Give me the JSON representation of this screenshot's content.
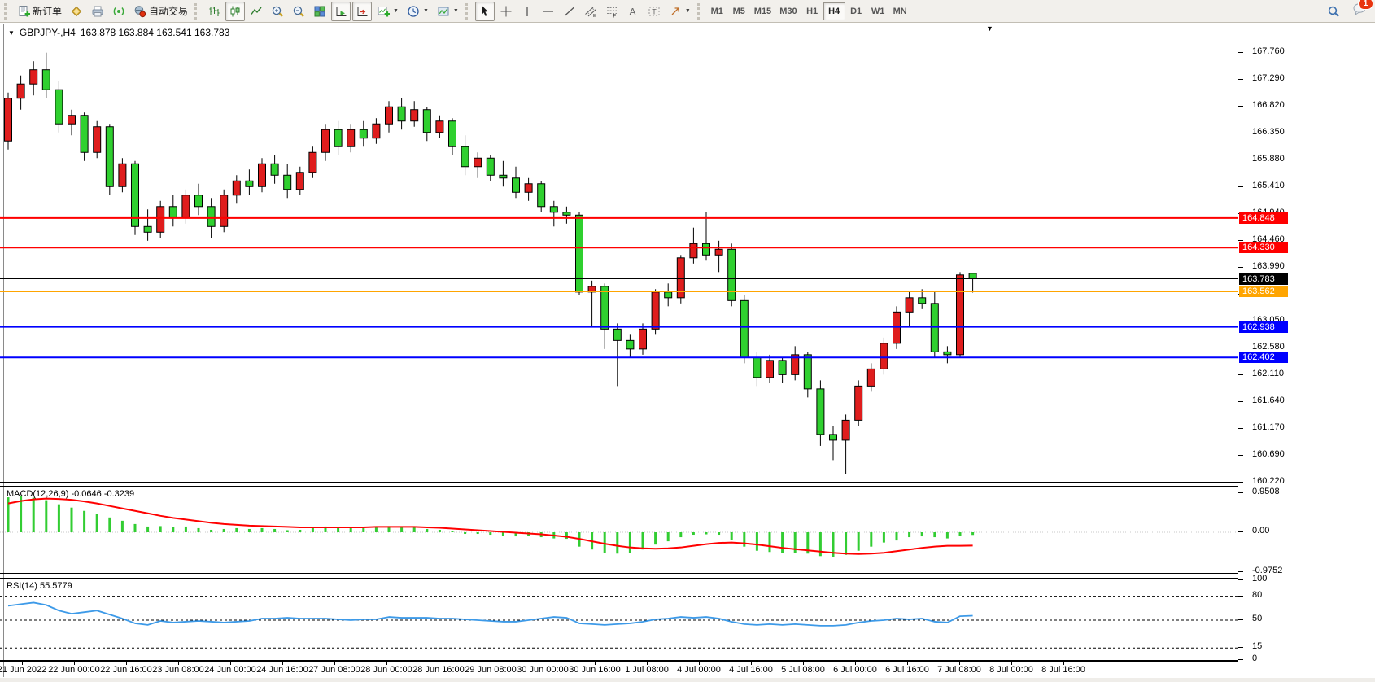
{
  "toolbar": {
    "new_order": "新订单",
    "auto_trading": "自动交易",
    "timeframes": [
      "M1",
      "M5",
      "M15",
      "M30",
      "H1",
      "H4",
      "D1",
      "W1",
      "MN"
    ],
    "active_timeframe": "H4",
    "notification_count": "1"
  },
  "chart": {
    "title": "GBPJPY-,H4",
    "ohlc": "163.878 163.884 163.541 163.783"
  },
  "colors": {
    "bull": "#df1d1d",
    "bear": "#2fd02f",
    "wick": "#000000",
    "line_red": "#ff0000",
    "line_orange": "#ffa500",
    "line_blue": "#0000ff",
    "line_black": "#000000",
    "macd_histogram": "#32cd32",
    "macd_signal": "#ff0000",
    "rsi_line": "#3d9ae8"
  },
  "chart_data": {
    "type": "candlestick",
    "symbol": "GBPJPY-",
    "period": "H4",
    "y_ticks": [
      "167.760",
      "167.290",
      "166.820",
      "166.350",
      "165.880",
      "165.410",
      "164.940",
      "164.460",
      "163.990",
      "163.520",
      "163.050",
      "162.580",
      "162.110",
      "161.640",
      "161.170",
      "160.690",
      "160.220"
    ],
    "y_range": [
      160.22,
      167.76
    ],
    "price_lines": [
      {
        "value": "164.848",
        "price": 164.848,
        "color": "#ff0000",
        "width": 2
      },
      {
        "value": "164.330",
        "price": 164.33,
        "color": "#ff0000",
        "width": 2
      },
      {
        "value": "163.783",
        "price": 163.783,
        "color": "#000000",
        "width": 1
      },
      {
        "value": "163.562",
        "price": 163.562,
        "color": "#ffa500",
        "width": 2
      },
      {
        "value": "162.938",
        "price": 162.938,
        "color": "#0000ff",
        "width": 2
      },
      {
        "value": "162.402",
        "price": 162.402,
        "color": "#0000ff",
        "width": 2
      }
    ],
    "x_labels": [
      "21 Jun 2022",
      "22 Jun 00:00",
      "22 Jun 16:00",
      "23 Jun 08:00",
      "24 Jun 00:00",
      "24 Jun 16:00",
      "27 Jun 08:00",
      "28 Jun 00:00",
      "28 Jun 16:00",
      "29 Jun 08:00",
      "30 Jun 00:00",
      "30 Jun 16:00",
      "1 Jul 08:00",
      "4 Jul 00:00",
      "4 Jul 16:00",
      "5 Jul 08:00",
      "6 Jul 00:00",
      "6 Jul 16:00",
      "7 Jul 08:00",
      "8 Jul 00:00",
      "8 Jul 16:00"
    ],
    "candles": [
      [
        166.2,
        167.05,
        166.05,
        166.95
      ],
      [
        166.95,
        167.35,
        166.75,
        167.2
      ],
      [
        167.2,
        167.6,
        167.0,
        167.45
      ],
      [
        167.45,
        167.75,
        166.95,
        167.1
      ],
      [
        167.1,
        167.25,
        166.35,
        166.5
      ],
      [
        166.5,
        166.75,
        166.3,
        166.65
      ],
      [
        166.65,
        166.7,
        165.85,
        166.0
      ],
      [
        166.0,
        166.55,
        165.9,
        166.45
      ],
      [
        166.45,
        166.5,
        165.25,
        165.4
      ],
      [
        165.4,
        165.9,
        165.3,
        165.8
      ],
      [
        165.8,
        165.85,
        164.55,
        164.7
      ],
      [
        164.7,
        165.0,
        164.45,
        164.6
      ],
      [
        164.6,
        165.15,
        164.5,
        165.05
      ],
      [
        165.05,
        165.25,
        164.7,
        164.85
      ],
      [
        164.85,
        165.35,
        164.75,
        165.25
      ],
      [
        165.25,
        165.45,
        164.9,
        165.05
      ],
      [
        165.05,
        165.2,
        164.5,
        164.7
      ],
      [
        164.7,
        165.35,
        164.6,
        165.25
      ],
      [
        165.25,
        165.6,
        165.1,
        165.5
      ],
      [
        165.5,
        165.7,
        165.25,
        165.4
      ],
      [
        165.4,
        165.9,
        165.3,
        165.8
      ],
      [
        165.8,
        165.95,
        165.45,
        165.6
      ],
      [
        165.6,
        165.8,
        165.2,
        165.35
      ],
      [
        165.35,
        165.75,
        165.25,
        165.65
      ],
      [
        165.65,
        166.1,
        165.55,
        166.0
      ],
      [
        166.0,
        166.5,
        165.85,
        166.4
      ],
      [
        166.4,
        166.55,
        165.95,
        166.1
      ],
      [
        166.1,
        166.5,
        166.0,
        166.4
      ],
      [
        166.4,
        166.55,
        166.1,
        166.25
      ],
      [
        166.25,
        166.6,
        166.15,
        166.5
      ],
      [
        166.5,
        166.9,
        166.35,
        166.8
      ],
      [
        166.8,
        166.95,
        166.4,
        166.55
      ],
      [
        166.55,
        166.9,
        166.45,
        166.75
      ],
      [
        166.75,
        166.8,
        166.2,
        166.35
      ],
      [
        166.35,
        166.65,
        166.25,
        166.55
      ],
      [
        166.55,
        166.6,
        165.95,
        166.1
      ],
      [
        166.1,
        166.3,
        165.6,
        165.75
      ],
      [
        165.75,
        166.0,
        165.55,
        165.9
      ],
      [
        165.9,
        165.95,
        165.5,
        165.6
      ],
      [
        165.6,
        165.85,
        165.4,
        165.55
      ],
      [
        165.55,
        165.75,
        165.2,
        165.3
      ],
      [
        165.3,
        165.55,
        165.15,
        165.45
      ],
      [
        165.45,
        165.5,
        164.95,
        165.05
      ],
      [
        165.05,
        165.15,
        164.7,
        164.95
      ],
      [
        164.95,
        165.05,
        164.75,
        164.9
      ],
      [
        164.9,
        164.95,
        163.5,
        163.55
      ],
      [
        163.55,
        163.75,
        162.95,
        163.65
      ],
      [
        163.65,
        163.7,
        162.55,
        162.9
      ],
      [
        162.9,
        163.0,
        161.9,
        162.7
      ],
      [
        162.7,
        162.8,
        162.4,
        162.55
      ],
      [
        162.55,
        163.0,
        162.45,
        162.9
      ],
      [
        162.9,
        163.6,
        162.8,
        163.55
      ],
      [
        163.55,
        163.7,
        163.3,
        163.45
      ],
      [
        163.45,
        164.2,
        163.35,
        164.15
      ],
      [
        164.15,
        164.68,
        164.05,
        164.4
      ],
      [
        164.4,
        164.95,
        164.1,
        164.2
      ],
      [
        164.2,
        164.45,
        163.9,
        164.3
      ],
      [
        164.3,
        164.4,
        163.3,
        163.4
      ],
      [
        163.4,
        163.5,
        162.3,
        162.4
      ],
      [
        162.4,
        162.5,
        161.9,
        162.05
      ],
      [
        162.05,
        162.45,
        161.95,
        162.35
      ],
      [
        162.35,
        162.4,
        161.95,
        162.1
      ],
      [
        162.1,
        162.6,
        162.0,
        162.45
      ],
      [
        162.45,
        162.5,
        161.7,
        161.85
      ],
      [
        161.85,
        162.0,
        160.85,
        161.05
      ],
      [
        161.05,
        161.2,
        160.6,
        160.95
      ],
      [
        160.95,
        161.4,
        160.35,
        161.3
      ],
      [
        161.3,
        162.0,
        161.2,
        161.9
      ],
      [
        161.9,
        162.3,
        161.8,
        162.2
      ],
      [
        162.2,
        162.75,
        162.1,
        162.65
      ],
      [
        162.65,
        163.3,
        162.55,
        163.2
      ],
      [
        163.2,
        163.55,
        162.95,
        163.45
      ],
      [
        163.45,
        163.6,
        163.25,
        163.35
      ],
      [
        163.35,
        163.55,
        162.4,
        162.5
      ],
      [
        162.5,
        162.6,
        162.3,
        162.45
      ],
      [
        162.45,
        163.9,
        162.4,
        163.85
      ],
      [
        163.878,
        163.884,
        163.541,
        163.783
      ]
    ],
    "macd": {
      "label": "MACD(12,26,9) -0.0646 -0.3239",
      "ticks": [
        "0.9508",
        "0.00",
        "-0.9752"
      ],
      "tick_values": [
        0.9508,
        0,
        -0.9752
      ],
      "histogram": [
        0.85,
        0.88,
        0.84,
        0.78,
        0.68,
        0.6,
        0.52,
        0.45,
        0.36,
        0.28,
        0.2,
        0.14,
        0.15,
        0.13,
        0.14,
        0.1,
        0.06,
        0.08,
        0.1,
        0.08,
        0.1,
        0.08,
        0.05,
        0.06,
        0.1,
        0.14,
        0.12,
        0.13,
        0.12,
        0.13,
        0.15,
        0.12,
        0.13,
        0.08,
        0.06,
        0.02,
        -0.04,
        -0.04,
        -0.06,
        -0.08,
        -0.1,
        -0.08,
        -0.12,
        -0.15,
        -0.16,
        -0.35,
        -0.42,
        -0.5,
        -0.52,
        -0.5,
        -0.42,
        -0.3,
        -0.22,
        -0.12,
        -0.06,
        -0.05,
        -0.06,
        -0.18,
        -0.35,
        -0.45,
        -0.48,
        -0.5,
        -0.5,
        -0.52,
        -0.58,
        -0.6,
        -0.55,
        -0.45,
        -0.35,
        -0.25,
        -0.2,
        -0.12,
        -0.1,
        -0.12,
        -0.15,
        -0.08,
        -0.0646
      ],
      "signal": [
        0.7,
        0.76,
        0.8,
        0.82,
        0.81,
        0.79,
        0.75,
        0.7,
        0.64,
        0.58,
        0.52,
        0.46,
        0.4,
        0.35,
        0.31,
        0.27,
        0.23,
        0.2,
        0.18,
        0.16,
        0.15,
        0.14,
        0.13,
        0.12,
        0.12,
        0.12,
        0.12,
        0.12,
        0.12,
        0.13,
        0.13,
        0.13,
        0.13,
        0.12,
        0.11,
        0.09,
        0.07,
        0.05,
        0.03,
        0.01,
        -0.01,
        -0.03,
        -0.05,
        -0.08,
        -0.11,
        -0.16,
        -0.22,
        -0.28,
        -0.33,
        -0.37,
        -0.39,
        -0.4,
        -0.39,
        -0.37,
        -0.33,
        -0.29,
        -0.26,
        -0.25,
        -0.27,
        -0.3,
        -0.34,
        -0.38,
        -0.41,
        -0.44,
        -0.47,
        -0.5,
        -0.52,
        -0.53,
        -0.52,
        -0.5,
        -0.46,
        -0.42,
        -0.38,
        -0.35,
        -0.33,
        -0.33,
        -0.3239
      ]
    },
    "rsi": {
      "label": "RSI(14) 55.5779",
      "ticks": [
        "100",
        "80",
        "50",
        "15",
        "0"
      ],
      "tick_values": [
        100,
        80,
        50,
        15,
        0
      ],
      "levels": [
        80,
        50,
        15
      ],
      "values": [
        68,
        70,
        72,
        69,
        62,
        58,
        60,
        62,
        57,
        52,
        46,
        44,
        49,
        47,
        48,
        49,
        48,
        47,
        48,
        49,
        52,
        52,
        53,
        52,
        52,
        52,
        51,
        50,
        51,
        51,
        54,
        53,
        53,
        53,
        52,
        52,
        51,
        50,
        49,
        48,
        48,
        50,
        52,
        54,
        53,
        46,
        45,
        44,
        45,
        46,
        48,
        51,
        52,
        54,
        53,
        54,
        52,
        48,
        45,
        44,
        45,
        44,
        45,
        44,
        43,
        43,
        44,
        47,
        49,
        50,
        52,
        51,
        52,
        48,
        47,
        55,
        55.58
      ]
    }
  }
}
